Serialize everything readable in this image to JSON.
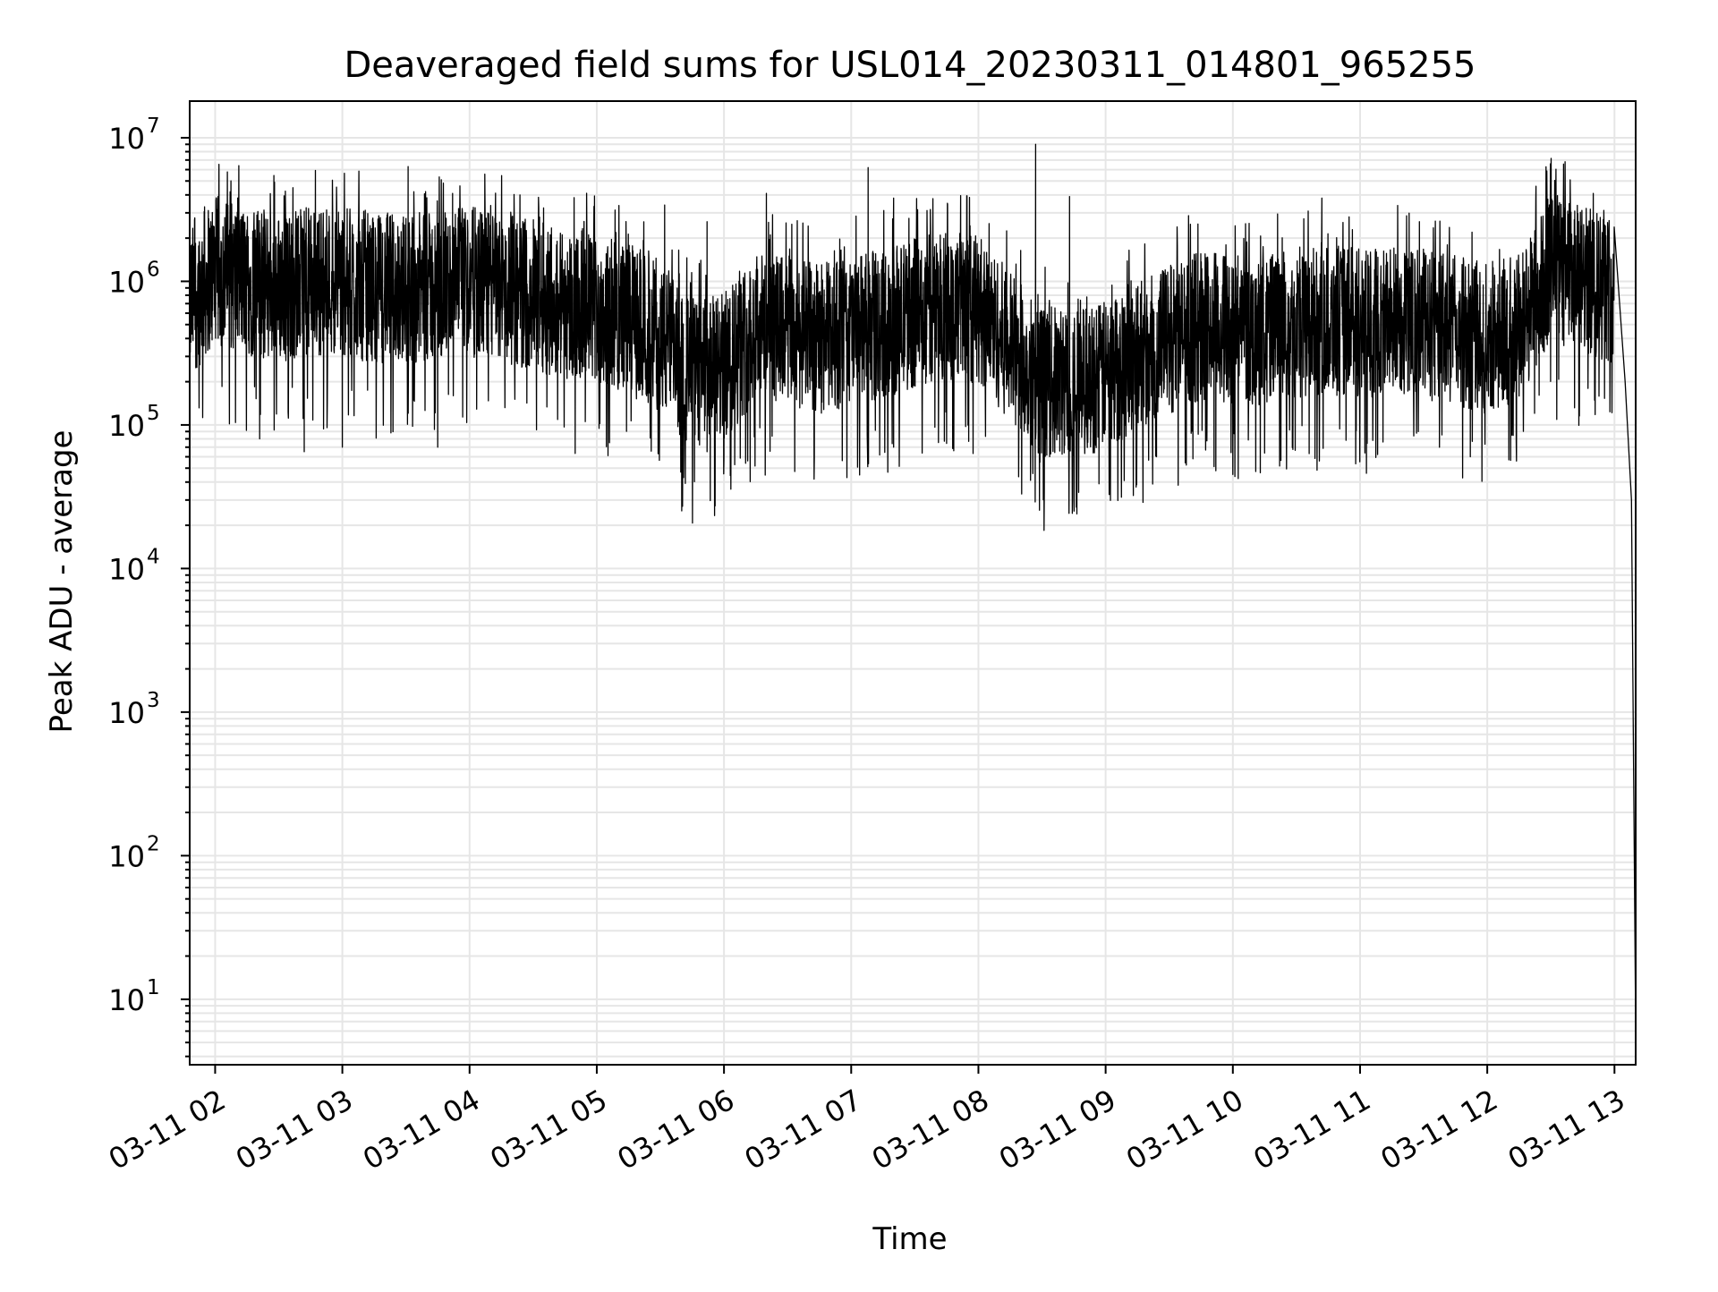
{
  "chart_data": {
    "type": "line",
    "title": "Deaveraged field sums for USL014_20230311_014801_965255",
    "xlabel": "Time",
    "ylabel": "Peak ADU - average",
    "yscale": "log",
    "xlim": [
      "03-11 01:48",
      "03-11 13:10"
    ],
    "ylim": [
      3.5,
      18000000
    ],
    "grid": true,
    "legend": "none",
    "line_color": "#000000",
    "grid_color": "#e6e6e6",
    "x_tick_labels": [
      "03-11 02",
      "03-11 03",
      "03-11 04",
      "03-11 05",
      "03-11 06",
      "03-11 07",
      "03-11 08",
      "03-11 09",
      "03-11 10",
      "03-11 11",
      "03-11 12",
      "03-11 13"
    ],
    "y_tick_base": "10",
    "y_tick_exponents": [
      "1",
      "2",
      "3",
      "4",
      "5",
      "6",
      "7"
    ],
    "series": [
      {
        "x": [
          "03-11 01:48",
          "03-11 02:00",
          "03-11 02:15",
          "03-11 02:30",
          "03-11 02:45",
          "03-11 03:00",
          "03-11 03:15",
          "03-11 03:30",
          "03-11 03:45",
          "03-11 04:00",
          "03-11 04:15",
          "03-11 04:30",
          "03-11 04:45",
          "03-11 05:00",
          "03-11 05:15",
          "03-11 05:30",
          "03-11 05:45",
          "03-11 06:00",
          "03-11 06:15",
          "03-11 06:30",
          "03-11 06:45",
          "03-11 07:00",
          "03-11 07:15",
          "03-11 07:30",
          "03-11 07:45",
          "03-11 08:00",
          "03-11 08:15",
          "03-11 08:30",
          "03-11 08:45",
          "03-11 09:00",
          "03-11 09:15",
          "03-11 09:30",
          "03-11 09:45",
          "03-11 10:00",
          "03-11 10:15",
          "03-11 10:30",
          "03-11 10:45",
          "03-11 11:00",
          "03-11 11:15",
          "03-11 11:30",
          "03-11 11:45",
          "03-11 12:00",
          "03-11 12:15",
          "03-11 12:30",
          "03-11 12:45",
          "03-11 13:00",
          "03-11 13:05",
          "03-11 13:08",
          "03-11 13:10"
        ],
        "y": [
          700000,
          1200000,
          1000000,
          900000,
          1000000,
          1000000,
          900000,
          900000,
          900000,
          1000000,
          900000,
          800000,
          700000,
          650000,
          550000,
          400000,
          220000,
          250000,
          500000,
          450000,
          400000,
          450000,
          500000,
          600000,
          700000,
          650000,
          350000,
          200000,
          200000,
          220000,
          300000,
          400000,
          500000,
          450000,
          450000,
          500000,
          550000,
          500000,
          550000,
          500000,
          450000,
          400000,
          500000,
          1200000,
          1000000,
          900000,
          200000,
          30000,
          6
        ],
        "spikes": [
          {
            "x": "03-11 01:55",
            "y": 3300000
          },
          {
            "x": "03-11 02:28",
            "y": 4900000
          },
          {
            "x": "03-11 02:50",
            "y": 2900000
          },
          {
            "x": "03-11 03:31",
            "y": 6300000
          },
          {
            "x": "03-11 03:52",
            "y": 4100000
          },
          {
            "x": "03-11 04:33",
            "y": 2800000
          },
          {
            "x": "03-11 05:32",
            "y": 3400000
          },
          {
            "x": "03-11 05:52",
            "y": 2600000
          },
          {
            "x": "03-11 06:20",
            "y": 4100000
          },
          {
            "x": "03-11 06:32",
            "y": 2500000
          },
          {
            "x": "03-11 07:08",
            "y": 6200000
          },
          {
            "x": "03-11 07:20",
            "y": 3800000
          },
          {
            "x": "03-11 08:27",
            "y": 9000000
          },
          {
            "x": "03-11 08:43",
            "y": 3900000
          },
          {
            "x": "03-11 09:40",
            "y": 2500000
          },
          {
            "x": "03-11 10:42",
            "y": 3800000
          },
          {
            "x": "03-11 11:28",
            "y": 2600000
          },
          {
            "x": "03-11 12:23",
            "y": 4600000
          },
          {
            "x": "03-11 12:36",
            "y": 5600000
          },
          {
            "x": "03-11 12:50",
            "y": 4100000
          }
        ],
        "dips": [
          {
            "x": "03-11 02:21",
            "y": 80000
          },
          {
            "x": "03-11 02:42",
            "y": 65000
          },
          {
            "x": "03-11 03:00",
            "y": 70000
          },
          {
            "x": "03-11 03:45",
            "y": 70000
          },
          {
            "x": "03-11 05:52",
            "y": 65000
          },
          {
            "x": "03-11 06:00",
            "y": 60000
          },
          {
            "x": "03-11 07:20",
            "y": 70000
          },
          {
            "x": "03-11 08:29",
            "y": 55000
          },
          {
            "x": "03-11 09:24",
            "y": 60000
          },
          {
            "x": "03-11 09:52",
            "y": 48000
          },
          {
            "x": "03-11 11:52",
            "y": 60000
          }
        ]
      }
    ]
  }
}
